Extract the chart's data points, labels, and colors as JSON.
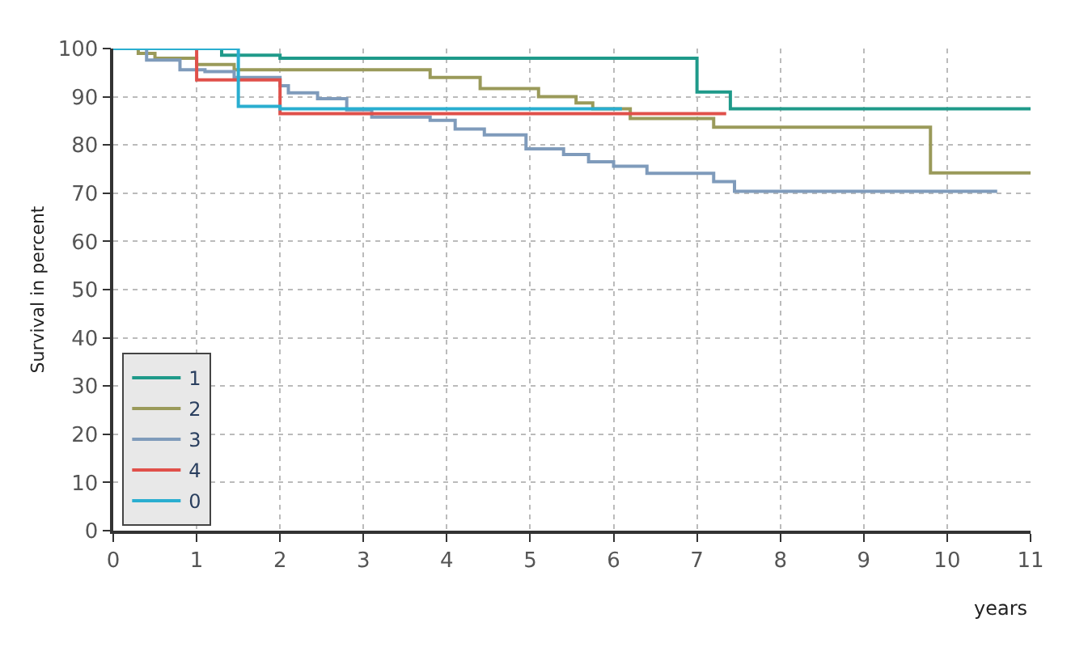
{
  "chart_data": {
    "type": "step",
    "xlabel": "years",
    "ylabel": "Survival in percent",
    "xlim": [
      0,
      11
    ],
    "xticks": [
      0,
      1,
      2,
      3,
      4,
      5,
      6,
      7,
      8,
      9,
      10,
      11
    ],
    "ylim": [
      0,
      100
    ],
    "yticks": [
      0,
      10,
      20,
      30,
      40,
      50,
      60,
      70,
      80,
      90,
      100
    ],
    "grid": true,
    "legend": "bottom left",
    "line_style": "solid",
    "marker": "none",
    "series": [
      {
        "name": "1",
        "color": "#1f9a8a",
        "x": [
          0,
          1.3,
          2.0,
          7.0,
          7.4,
          11.0
        ],
        "values": [
          100,
          98.6,
          98,
          91,
          87.5,
          87.5
        ]
      },
      {
        "name": "2",
        "color": "#9a9a5a",
        "x": [
          0,
          0.3,
          0.5,
          1.0,
          1.45,
          3.6,
          3.8,
          4.4,
          5.1,
          5.55,
          5.75,
          6.2,
          7.2,
          9.8,
          11.0
        ],
        "values": [
          100,
          99,
          98,
          96.7,
          95.6,
          95.6,
          94,
          91.7,
          90,
          88.7,
          87.5,
          85.5,
          83.7,
          74.2,
          74.2
        ]
      },
      {
        "name": "3",
        "color": "#7f9bbb",
        "x": [
          0,
          0.4,
          0.8,
          1.1,
          1.45,
          2.0,
          2.1,
          2.45,
          2.8,
          3.1,
          3.8,
          4.1,
          4.45,
          4.95,
          5.4,
          5.7,
          6.0,
          6.4,
          7.2,
          7.45,
          10.6
        ],
        "values": [
          100,
          97.6,
          95.6,
          95.2,
          94,
          92.3,
          90.8,
          89.6,
          87.3,
          85.8,
          85.1,
          83.3,
          82.1,
          79.2,
          78,
          76.5,
          75.6,
          74.1,
          72.4,
          70.4,
          70.4
        ]
      },
      {
        "name": "4",
        "color": "#e0504a",
        "x": [
          0,
          1.0,
          2.0,
          7.35
        ],
        "values": [
          100,
          93.5,
          86.5,
          86.5
        ]
      },
      {
        "name": "0",
        "color": "#2aaed0",
        "x": [
          0,
          1.5,
          2.0,
          6.1
        ],
        "values": [
          100,
          88,
          87.5,
          87.5
        ]
      }
    ]
  }
}
